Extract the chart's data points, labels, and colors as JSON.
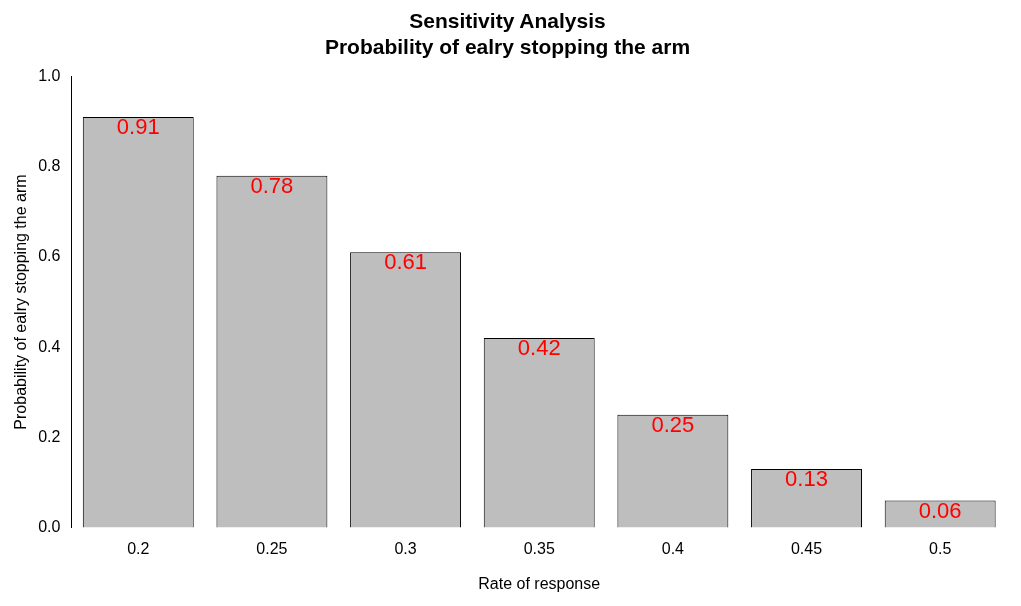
{
  "chart_data": {
    "type": "bar",
    "title": "Sensitivity Analysis",
    "subtitle": "Probability of ealry stopping the arm",
    "xlabel": "Rate of response",
    "ylabel": "Probability of ealry stopping the arm",
    "categories": [
      "0.2",
      "0.25",
      "0.3",
      "0.35",
      "0.4",
      "0.45",
      "0.5"
    ],
    "values": [
      0.91,
      0.78,
      0.61,
      0.42,
      0.25,
      0.13,
      0.06
    ],
    "color": "#bebebe",
    "ylim": [
      0,
      1
    ],
    "yticks": [
      {
        "value": 0,
        "label": "0.0"
      },
      0.2,
      0.4,
      0.6,
      0.8,
      {
        "value": 1,
        "label": "1.0"
      }
    ],
    "grid": false,
    "legend": false,
    "data_labels": true
  }
}
